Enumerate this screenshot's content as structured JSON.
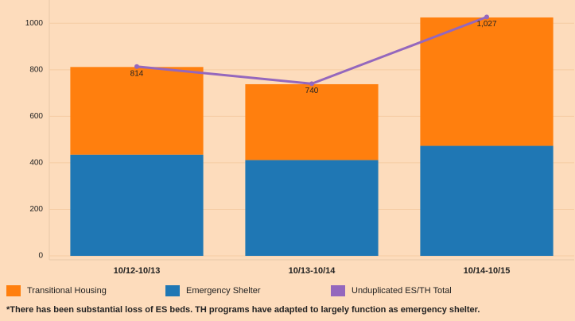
{
  "chart_data": {
    "type": "bar",
    "categories": [
      "10/12-10/13",
      "10/13-10/14",
      "10/14-10/15"
    ],
    "series": [
      {
        "name": "Emergency Shelter",
        "color": "#1f77b4",
        "values": [
          435,
          412,
          473
        ]
      },
      {
        "name": "Transitional Housing",
        "color": "#ff7f0e",
        "values": [
          377,
          326,
          552
        ]
      },
      {
        "name": "Unduplicated ES/TH Total",
        "color": "#9467bd",
        "type": "line",
        "values": [
          814,
          740,
          1027
        ],
        "value_labels": [
          "814",
          "740",
          "1,027"
        ]
      }
    ],
    "legend_order": [
      1,
      0,
      2
    ],
    "stacked": true,
    "ylim": [
      -17,
      1100
    ],
    "yticks": [
      0,
      200,
      400,
      600,
      800,
      1000
    ],
    "grid": true,
    "footnote": "*There has been substantial loss of ES beds. TH programs have adapted to largely function as emergency shelter."
  }
}
